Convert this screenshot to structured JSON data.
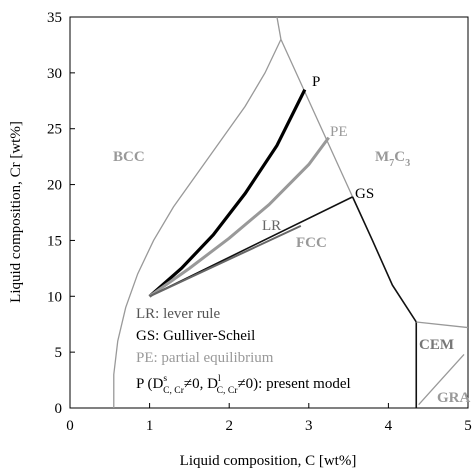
{
  "chart_data": {
    "type": "line",
    "x_label": "Liquid composition, C [wt%]",
    "y_label": "Liquid composition, Cr [wt%]",
    "xlim": [
      0,
      5
    ],
    "ylim": [
      0,
      35
    ],
    "xticks": [
      0,
      1,
      2,
      3,
      4,
      5
    ],
    "yticks": [
      0,
      5,
      10,
      15,
      20,
      25,
      30,
      35
    ],
    "series": [
      {
        "color": "#999999",
        "width": 1.3,
        "x": [
          0.55,
          0.55,
          0.6,
          0.7,
          0.85,
          1.05,
          1.3,
          1.6,
          1.9,
          2.2,
          2.45,
          2.65
        ],
        "y": [
          0,
          3,
          6,
          9,
          12,
          15,
          18,
          21,
          24,
          27,
          30,
          33
        ]
      },
      {
        "color": "#999999",
        "width": 1.3,
        "x": [
          2.6,
          2.65
        ],
        "y": [
          35,
          33
        ]
      },
      {
        "color": "#999999",
        "width": 1.3,
        "x": [
          2.65,
          3.55
        ],
        "y": [
          33,
          18.9
        ]
      },
      {
        "color": "#111111",
        "width": 1.6,
        "x": [
          3.55,
          3.8,
          4.05,
          4.35,
          4.35
        ],
        "y": [
          18.9,
          15,
          11,
          7.7,
          0
        ]
      },
      {
        "color": "#999999",
        "width": 1.3,
        "x": [
          4.35,
          5
        ],
        "y": [
          7.7,
          7.2
        ]
      },
      {
        "color": "#999999",
        "width": 1.3,
        "x": [
          4.38,
          4.95
        ],
        "y": [
          0.3,
          4.8
        ]
      },
      {
        "name": "P",
        "color": "#000000",
        "width": 3.2,
        "x": [
          1,
          1.4,
          1.8,
          2.2,
          2.6,
          2.95
        ],
        "y": [
          10,
          12.5,
          15.5,
          19.2,
          23.5,
          28.5
        ]
      },
      {
        "name": "PE",
        "color": "#999999",
        "width": 3,
        "x": [
          1,
          1.5,
          2,
          2.5,
          3,
          3.25
        ],
        "y": [
          10,
          12.5,
          15.2,
          18.2,
          21.8,
          24.2
        ]
      },
      {
        "name": "GS",
        "color": "#111111",
        "width": 1.6,
        "x": [
          1,
          3.55
        ],
        "y": [
          10,
          18.9
        ]
      },
      {
        "name": "LR",
        "color": "#666666",
        "width": 2,
        "x": [
          1,
          2.9
        ],
        "y": [
          10,
          16.3
        ]
      }
    ],
    "phase_labels": [
      {
        "segments": [
          {
            "text": "BCC"
          }
        ],
        "color": "#999999"
      },
      {
        "segments": [
          {
            "text": "M"
          },
          {
            "text": "7",
            "sub": true
          },
          {
            "text": "C"
          },
          {
            "text": "3",
            "sub": true
          }
        ],
        "color": "#999999"
      },
      {
        "segments": [
          {
            "text": "FCC"
          }
        ],
        "color": "#999999"
      },
      {
        "segments": [
          {
            "text": "CEM"
          }
        ],
        "color": "#777777"
      },
      {
        "segments": [
          {
            "text": "GRA"
          }
        ],
        "color": "#999999"
      }
    ],
    "notes": [
      {
        "segments": [
          {
            "text": "LR: lever rule"
          }
        ],
        "color": "#555555"
      },
      {
        "segments": [
          {
            "text": "GS: Gulliver-Scheil"
          }
        ],
        "color": "#000000"
      },
      {
        "segments": [
          {
            "text": "PE: partial equilibrium"
          }
        ],
        "color": "#999999"
      },
      {
        "segments": [
          {
            "text": "P (D"
          },
          {
            "text": "s",
            "sup": true
          },
          {
            "text": "C, Cr",
            "sub": true
          },
          {
            "text": "≠0, D"
          },
          {
            "text": "l",
            "sup": true
          },
          {
            "text": "C, Cr",
            "sub": true
          },
          {
            "text": "≠0): present model"
          }
        ],
        "color": "#000000"
      }
    ]
  }
}
